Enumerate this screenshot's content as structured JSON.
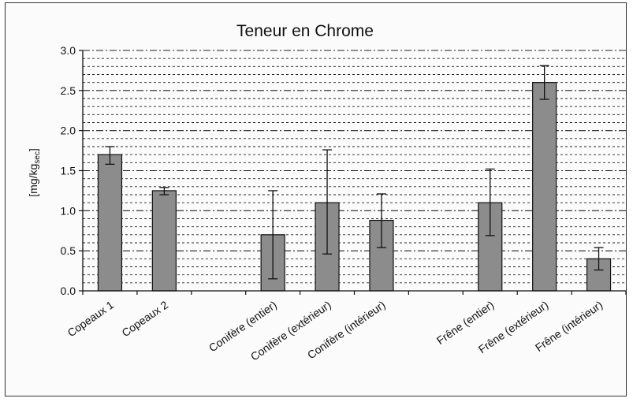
{
  "chart_data": {
    "type": "bar",
    "title": "Teneur en Chrome",
    "ylabel_main": "[mg/kg",
    "ylabel_sub": "sec",
    "ylabel_close": "]",
    "xlabel": "",
    "ylim": [
      0,
      3.0
    ],
    "ytick_labels": [
      "0.0",
      "0.5",
      "1.0",
      "1.5",
      "2.0",
      "2.5",
      "3.0"
    ],
    "ytick_values": [
      0,
      0.5,
      1.0,
      1.5,
      2.0,
      2.5,
      3.0
    ],
    "categories": [
      "Copeaux 1",
      "Copeaux 2",
      "",
      "Conifère (entier)",
      "Conifère (extérieur)",
      "Conifère (intérieur)",
      "",
      "Frêne (entier)",
      "Frêne (extérieur)",
      "Frêne (intérieur)"
    ],
    "values": [
      1.7,
      1.25,
      null,
      0.7,
      1.1,
      0.88,
      null,
      1.1,
      2.6,
      0.4
    ],
    "error_low": [
      1.58,
      1.2,
      null,
      0.15,
      0.46,
      0.54,
      null,
      0.69,
      2.39,
      0.26
    ],
    "error_high": [
      1.8,
      1.29,
      null,
      1.25,
      1.76,
      1.21,
      null,
      1.52,
      2.81,
      0.54
    ],
    "grid": true,
    "bar_color": "#8c8c8c"
  }
}
